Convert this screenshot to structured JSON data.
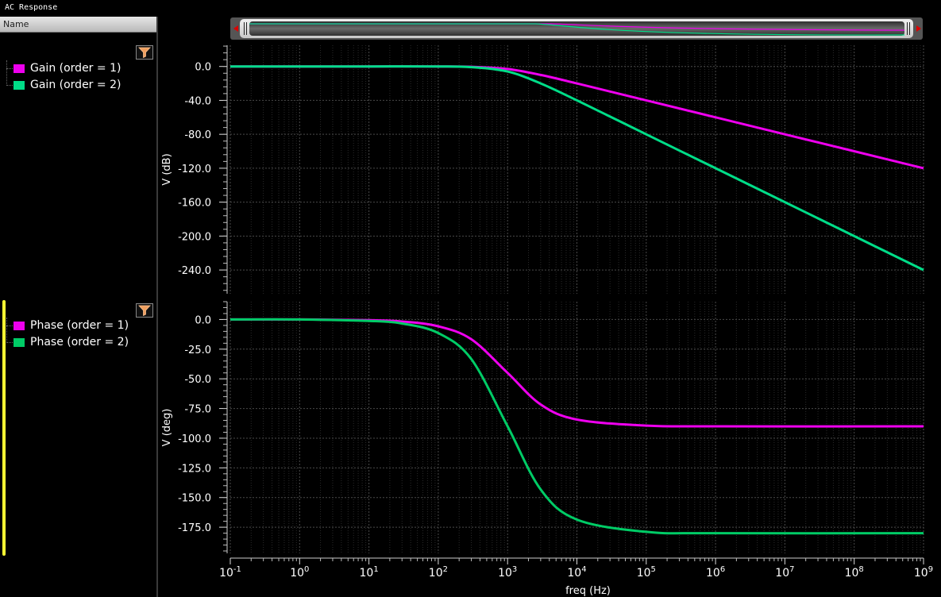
{
  "window": {
    "title": "AC Response"
  },
  "sidebar": {
    "header": "Name"
  },
  "legends": {
    "gain": [
      {
        "label": "Gain (order = 1)",
        "color": "#ee00ee"
      },
      {
        "label": "Gain (order = 2)",
        "color": "#00dd88"
      }
    ],
    "phase": [
      {
        "label": "Phase (order = 1)",
        "color": "#ee00ee"
      },
      {
        "label": "Phase (order = 2)",
        "color": "#00cc66"
      }
    ]
  },
  "chart_data": [
    {
      "type": "line",
      "ylabel": "V (dB)",
      "x_scale": "log",
      "xlim": [
        0.1,
        1000000000
      ],
      "ylim": [
        -268,
        25
      ],
      "yticks": [
        0,
        -40,
        -80,
        -120,
        -160,
        -200,
        -240
      ],
      "ytick_labels": [
        "0.0",
        "-40.0",
        "-80.0",
        "-120.0",
        "-160.0",
        "-200.0",
        "-240.0"
      ],
      "grid": true,
      "series": [
        {
          "name": "Gain (order = 1)",
          "color": "#ee00ee",
          "x": [
            0.1,
            1,
            10,
            100,
            300,
            1000,
            3000,
            10000,
            100000,
            1000000,
            10000000,
            100000000,
            1000000000
          ],
          "y": [
            0,
            0,
            0,
            0,
            -0.4,
            -3,
            -10,
            -20,
            -40,
            -60,
            -80,
            -100,
            -120
          ]
        },
        {
          "name": "Gain (order = 2)",
          "color": "#00dd88",
          "x": [
            0.1,
            1,
            10,
            100,
            300,
            1000,
            3000,
            10000,
            100000,
            1000000,
            10000000,
            100000000,
            1000000000
          ],
          "y": [
            0,
            0,
            0,
            0,
            -0.8,
            -6,
            -20,
            -40,
            -80,
            -120,
            -160,
            -200,
            -240
          ]
        }
      ]
    },
    {
      "type": "line",
      "ylabel": "V (deg)",
      "x_scale": "log",
      "xlim": [
        0.1,
        1000000000
      ],
      "ylim": [
        -197,
        15
      ],
      "yticks": [
        0,
        -25,
        -50,
        -75,
        -100,
        -125,
        -150,
        -175
      ],
      "ytick_labels": [
        "0.0",
        "-25.0",
        "-50.0",
        "-75.0",
        "-100.0",
        "-125.0",
        "-150.0",
        "-175.0"
      ],
      "xlabel": "freq (Hz)",
      "xtick_exponents": [
        "-1",
        "0",
        "1",
        "2",
        "3",
        "4",
        "5",
        "6",
        "7",
        "8",
        "9"
      ],
      "grid": true,
      "series": [
        {
          "name": "Phase (order = 1)",
          "color": "#ee00ee",
          "x": [
            0.1,
            1,
            10,
            30,
            100,
            300,
            1000,
            3000,
            10000,
            100000,
            1000000,
            1000000000
          ],
          "y": [
            0,
            0,
            -0.6,
            -1.7,
            -5.7,
            -16.7,
            -45,
            -71.6,
            -84.3,
            -89.4,
            -90,
            -90
          ]
        },
        {
          "name": "Phase (order = 2)",
          "color": "#00cc66",
          "x": [
            0.1,
            1,
            10,
            30,
            100,
            300,
            1000,
            3000,
            10000,
            100000,
            1000000,
            1000000000
          ],
          "y": [
            0,
            0,
            -1.2,
            -3.4,
            -11.4,
            -33.4,
            -90,
            -143.2,
            -168.6,
            -178.9,
            -180,
            -180
          ]
        }
      ]
    }
  ]
}
